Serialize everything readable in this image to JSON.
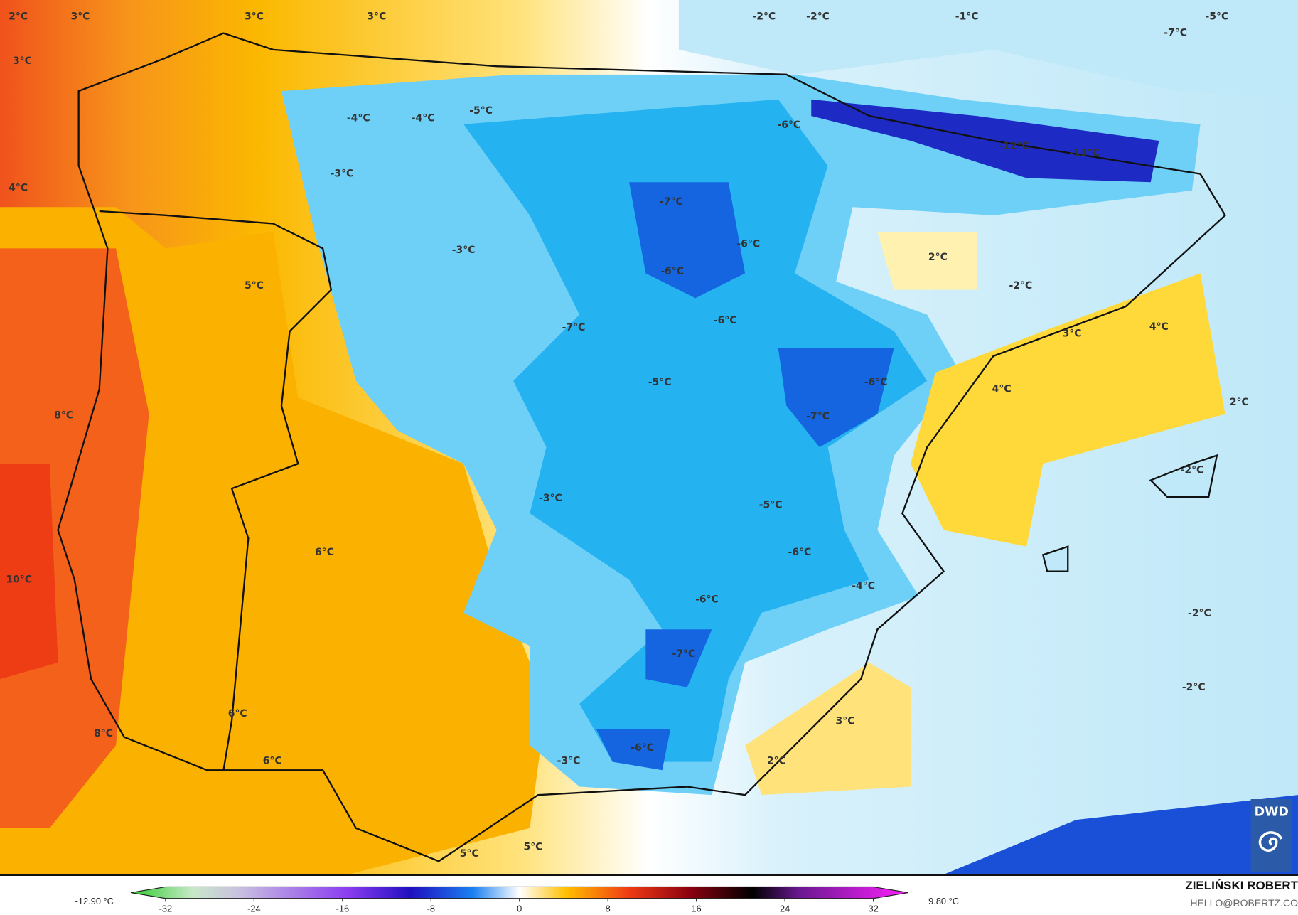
{
  "map": {
    "labels": [
      "2°C",
      "3°C",
      "3°C",
      "3°C",
      "-2°C",
      "-2°C",
      "-1°C",
      "-5°C",
      "-7°C",
      "3°C",
      "-4°C",
      "-4°C",
      "-5°C",
      "-6°C",
      "-12°C",
      "-13°C",
      "-3°C",
      "4°C",
      "-7°C",
      "-6°C",
      "-3°C",
      "2°C",
      "-6°C",
      "5°C",
      "-2°C",
      "-6°C",
      "-7°C",
      "3°C",
      "4°C",
      "-5°C",
      "-6°C",
      "4°C",
      "2°C",
      "8°C",
      "-7°C",
      "-2°C",
      "-3°C",
      "-5°C",
      "6°C",
      "-6°C",
      "10°C",
      "-4°C",
      "-6°C",
      "-2°C",
      "-7°C",
      "-2°C",
      "6°C",
      "3°C",
      "8°C",
      "-6°C",
      "-3°C",
      "2°C",
      "6°C",
      "5°C",
      "5°C"
    ],
    "logo": "DWD"
  },
  "legend": {
    "min_label": "-12.90 °C",
    "max_label": "9.80 °C",
    "ticks": [
      "-32",
      "-24",
      "-16",
      "-8",
      "0",
      "8",
      "16",
      "24",
      "32"
    ],
    "range": [
      -32,
      32
    ]
  },
  "credits": {
    "author": "ZIELIŃSKI ROBERT",
    "email": "HELLO@ROBERTZ.CO"
  },
  "colors": {
    "warm": "#f5a300",
    "hot": "#f04a1a",
    "cold": "#1fb0f0",
    "very_cold": "#1a22c0",
    "neutral": "#ffffff"
  }
}
